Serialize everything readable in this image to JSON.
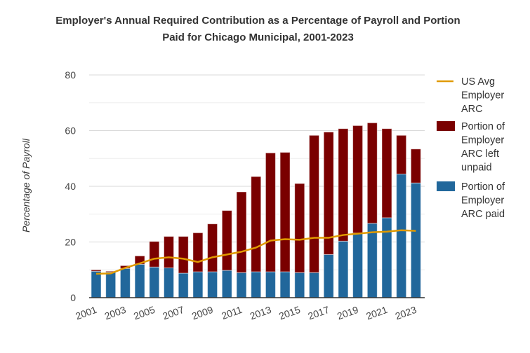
{
  "chart_data": {
    "type": "bar",
    "title_line1": "Employer's Annual Required Contribution as a Percentage of Payroll and Portion",
    "title_line2": "Paid for Chicago Municipal, 2001-2023",
    "ylabel": "Percentage of Payroll",
    "xlabel": "",
    "ylim": [
      0,
      80
    ],
    "yticks": [
      "0",
      "20",
      "40",
      "60",
      "80"
    ],
    "categories": [
      "2001",
      "2002",
      "2003",
      "2004",
      "2005",
      "2006",
      "2007",
      "2008",
      "2009",
      "2010",
      "2011",
      "2012",
      "2013",
      "2014",
      "2015",
      "2016",
      "2017",
      "2018",
      "2019",
      "2020",
      "2021",
      "2022",
      "2023"
    ],
    "xtick_labels": [
      "2001",
      "2003",
      "2005",
      "2007",
      "2009",
      "2011",
      "2013",
      "2015",
      "2017",
      "2019",
      "2021",
      "2023"
    ],
    "series": [
      {
        "name": "Portion of Employer ARC paid",
        "type": "bar",
        "color": "#21679b",
        "values": [
          9.5,
          9.2,
          10.5,
          12,
          11,
          10.7,
          8.8,
          9.3,
          9.3,
          9.8,
          9,
          9.3,
          9.3,
          9.3,
          9,
          9,
          15.5,
          20.3,
          23.2,
          26.7,
          28.7,
          44.4,
          41.2
        ]
      },
      {
        "name": "Portion of Employer ARC left unpaid",
        "type": "bar",
        "color": "#7a0000",
        "values": [
          0.5,
          0.3,
          1,
          3,
          9.2,
          11.3,
          13.2,
          14,
          17.2,
          21.5,
          29,
          34.2,
          42.7,
          42.9,
          32,
          49.3,
          44,
          40.4,
          38.6,
          36.1,
          32,
          13.9,
          12.2
        ]
      },
      {
        "name": "US Avg Employer ARC",
        "type": "line",
        "color": "#e09a00",
        "values": [
          8.6,
          8.7,
          10.7,
          12.3,
          14,
          14.5,
          14,
          12.8,
          14.5,
          15.5,
          16.5,
          18,
          20.5,
          21,
          20.8,
          21.5,
          21.5,
          22.5,
          23,
          23.5,
          23.7,
          24.2,
          24
        ]
      }
    ],
    "legend": [
      {
        "lines": [
          "US Avg",
          "Employer",
          "ARC"
        ],
        "color": "#e09a00",
        "kind": "line"
      },
      {
        "lines": [
          "Portion of",
          "Employer",
          "ARC left",
          "unpaid"
        ],
        "color": "#7a0000",
        "kind": "box"
      },
      {
        "lines": [
          "Portion of",
          "Employer",
          "ARC paid"
        ],
        "color": "#21679b",
        "kind": "box"
      }
    ],
    "legend_position": "right",
    "grid": true
  }
}
